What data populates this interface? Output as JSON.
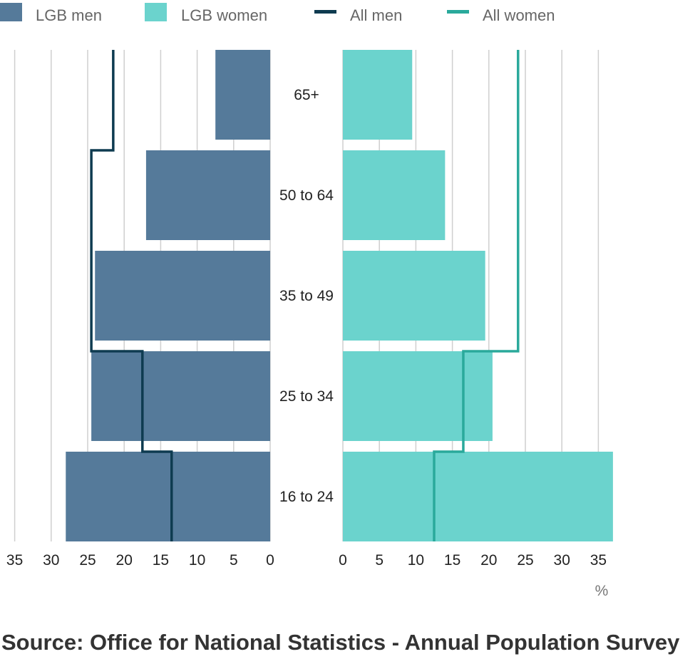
{
  "chart_data": {
    "type": "bar",
    "orientation": "horizontal-pyramid",
    "categories": [
      "65+",
      "50 to 64",
      "35 to 49",
      "25 to 34",
      "16 to 24"
    ],
    "series": [
      {
        "name": "LGB men",
        "side": "left",
        "kind": "bar",
        "color": "#557a9a",
        "values": [
          7.5,
          17,
          24,
          24.5,
          28
        ]
      },
      {
        "name": "LGB women",
        "side": "right",
        "kind": "bar",
        "color": "#6bd3cd",
        "values": [
          9.5,
          14,
          19.5,
          20.5,
          37
        ]
      },
      {
        "name": "All men",
        "side": "left",
        "kind": "step-line",
        "color": "#0e3b50",
        "values": [
          21.5,
          24.5,
          24.5,
          17.5,
          13.5
        ]
      },
      {
        "name": "All women",
        "side": "right",
        "kind": "step-line",
        "color": "#2aa99b",
        "values": [
          24,
          24,
          24,
          16.5,
          12.5
        ]
      }
    ],
    "left_ticks": [
      "35",
      "30",
      "25",
      "20",
      "15",
      "10",
      "5",
      "0"
    ],
    "right_ticks": [
      "0",
      "5",
      "10",
      "15",
      "20",
      "25",
      "30",
      "35"
    ],
    "xlim": [
      0,
      35
    ],
    "unit_label": "%",
    "grid": true,
    "legend_position": "top"
  },
  "source": "Source: Office for National Statistics - Annual Population Survey"
}
